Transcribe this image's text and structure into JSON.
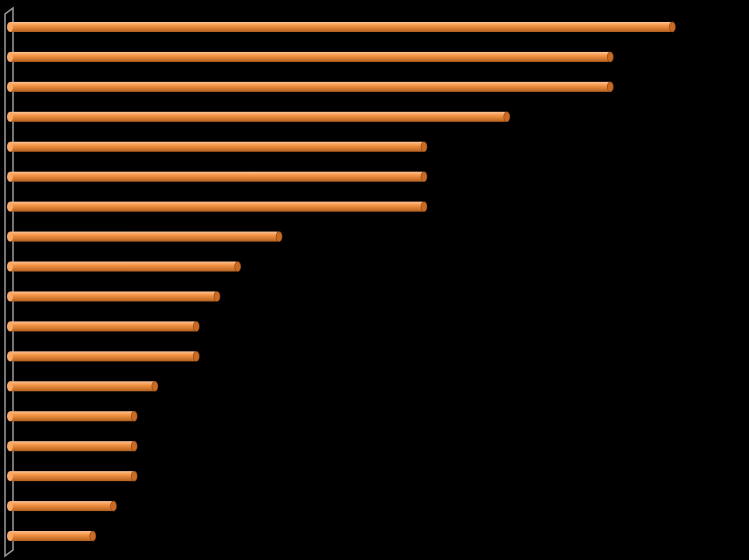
{
  "chart_data": {
    "type": "bar",
    "orientation": "horizontal",
    "categories": [
      null,
      null,
      null,
      null,
      null,
      null,
      null,
      null,
      null,
      null,
      null,
      null,
      null,
      null,
      null,
      null,
      null,
      null
    ],
    "values": [
      32,
      29,
      29,
      24,
      20,
      20,
      20,
      13,
      11,
      10,
      9,
      9,
      7,
      6,
      6,
      6,
      5,
      4
    ],
    "color": "#f79646",
    "xlim": [
      0,
      35
    ]
  }
}
